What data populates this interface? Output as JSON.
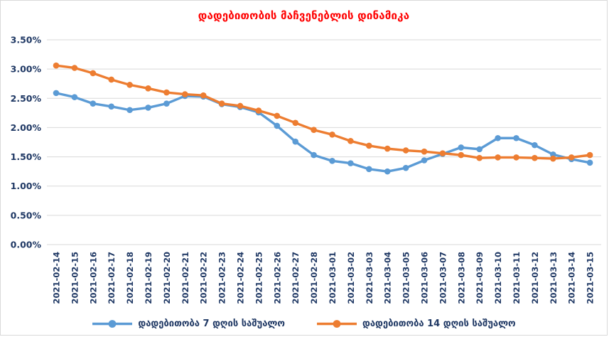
{
  "title_color": "#FF0000",
  "axis_text_color": "#1F3864",
  "gridline_color": "#D9D9D9",
  "background_color": "#FFFFFF",
  "chart_data": {
    "type": "line",
    "title": "დადებითობის მაჩვენებლის დინამიკა",
    "categories": [
      "2021-02-14",
      "2021-02-15",
      "2021-02-16",
      "2021-02-17",
      "2021-02-18",
      "2021-02-19",
      "2021-02-20",
      "2021-02-21",
      "2021-02-22",
      "2021-02-23",
      "2021-02-24",
      "2021-02-25",
      "2021-02-26",
      "2021-02-27",
      "2021-02-28",
      "2021-03-01",
      "2021-03-02",
      "2021-03-03",
      "2021-03-04",
      "2021-03-05",
      "2021-03-06",
      "2021-03-07",
      "2021-03-08",
      "2021-03-09",
      "2021-03-10",
      "2021-03-11",
      "2021-03-12",
      "2021-03-13",
      "2021-03-14",
      "2021-03-15"
    ],
    "series": [
      {
        "name": "დადებითობა 7 დღის საშუალო",
        "color": "#5B9BD5",
        "values": [
          2.59,
          2.52,
          2.41,
          2.36,
          2.3,
          2.34,
          2.41,
          2.54,
          2.53,
          2.4,
          2.35,
          2.26,
          2.03,
          1.76,
          1.53,
          1.43,
          1.39,
          1.29,
          1.25,
          1.31,
          1.44,
          1.55,
          1.66,
          1.63,
          1.82,
          1.82,
          1.7,
          1.54,
          1.46,
          1.4
        ]
      },
      {
        "name": "დადებითობა 14 დღის საშუალო",
        "color": "#ED7D31",
        "values": [
          3.06,
          3.02,
          2.93,
          2.82,
          2.73,
          2.67,
          2.6,
          2.57,
          2.55,
          2.41,
          2.37,
          2.29,
          2.2,
          2.08,
          1.96,
          1.88,
          1.77,
          1.69,
          1.64,
          1.61,
          1.59,
          1.56,
          1.53,
          1.48,
          1.49,
          1.49,
          1.48,
          1.47,
          1.49,
          1.53
        ]
      }
    ],
    "xlabel": "",
    "ylabel": "",
    "ylim": [
      0,
      3.5
    ],
    "y_tick_step": 0.5,
    "y_tick_labels": [
      "0.00%",
      "0.50%",
      "1.00%",
      "1.50%",
      "2.00%",
      "2.50%",
      "3.00%",
      "3.50%"
    ],
    "grid": true,
    "legend_position": "bottom"
  }
}
